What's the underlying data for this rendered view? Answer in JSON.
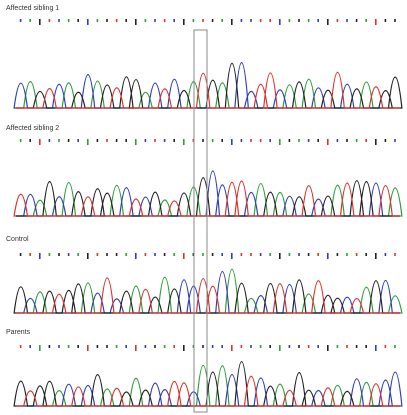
{
  "panels": [
    {
      "label": "Affected sibling 1"
    },
    {
      "label": "Affected sibling 2"
    },
    {
      "label": "Control"
    },
    {
      "label": "Parents"
    }
  ]
}
